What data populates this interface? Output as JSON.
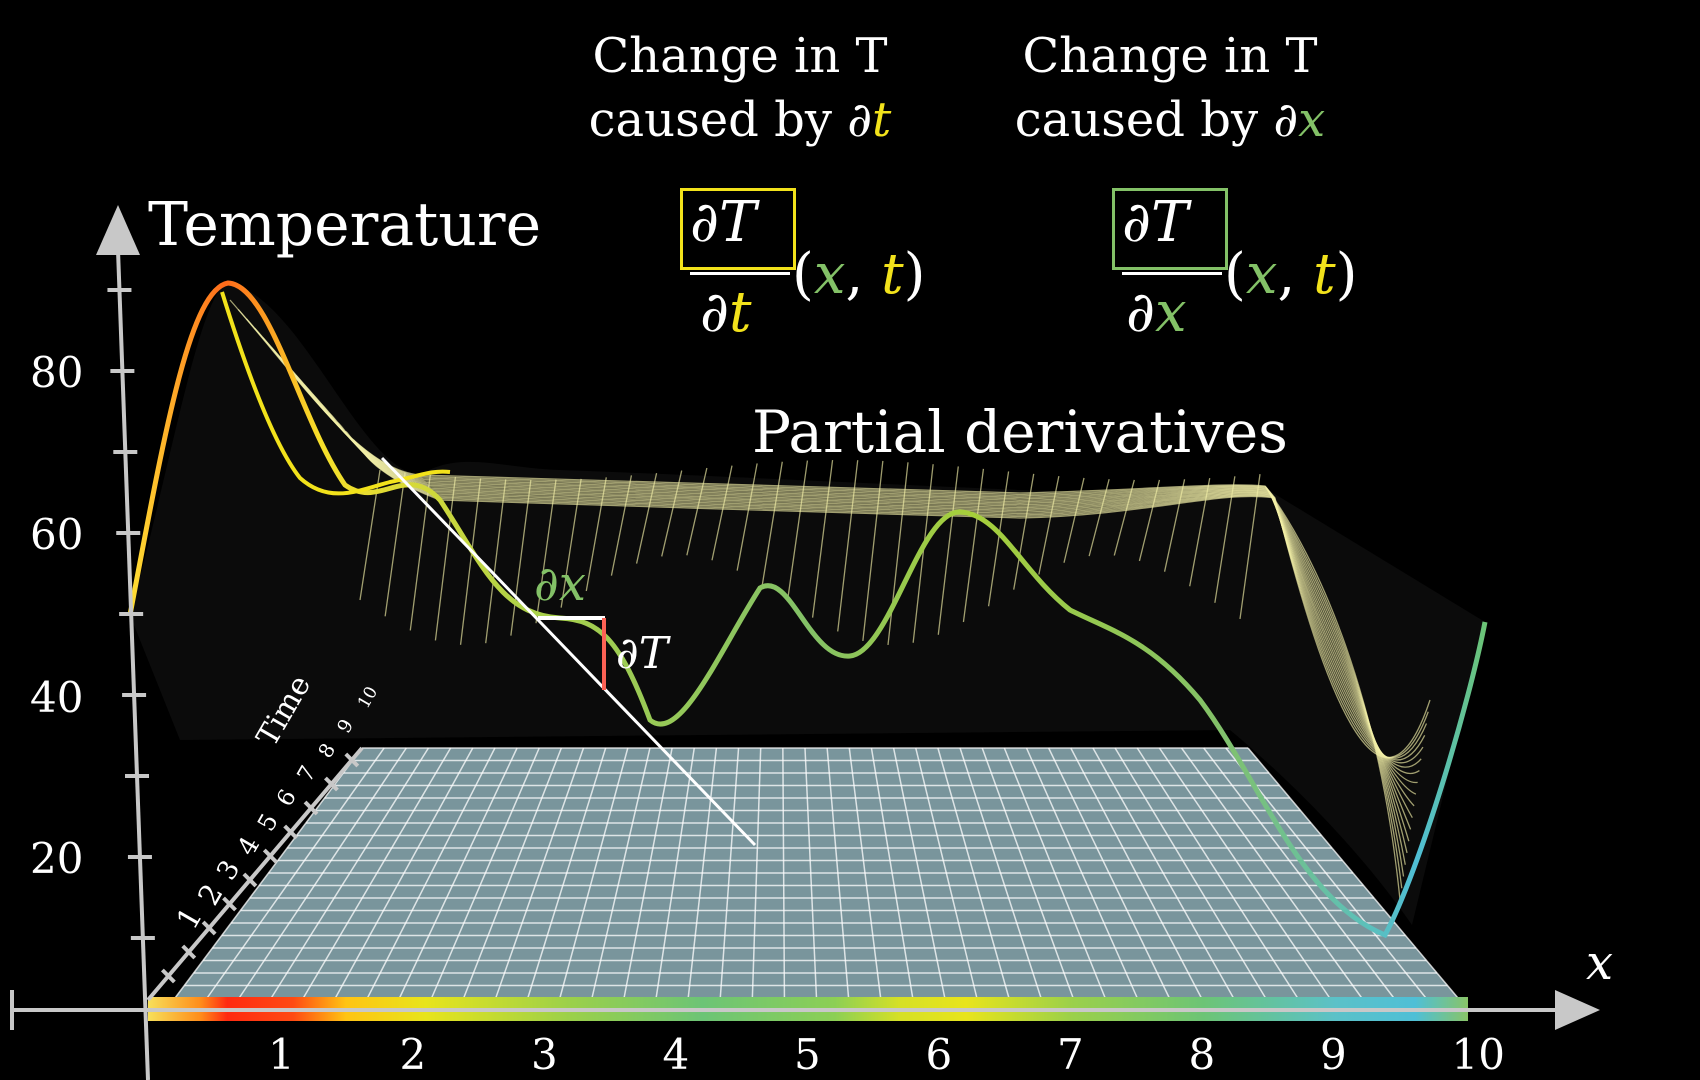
{
  "captions": {
    "t_line1": "Change in T",
    "t_line2_prefix": "caused by ∂",
    "t_line2_var": "t",
    "x_line1": "Change in T",
    "x_line2_prefix": "caused by ∂",
    "x_line2_var": "x"
  },
  "formulas": {
    "dt": {
      "numerator": "∂T",
      "denominator_prefix": "∂",
      "denominator_var": "t",
      "args_open": "(",
      "arg_x": "x",
      "comma": ", ",
      "arg_t": "t",
      "args_close": ")"
    },
    "dx": {
      "numerator": "∂T",
      "denominator_prefix": "∂",
      "denominator_var": "x",
      "args_open": "(",
      "arg_x": "x",
      "comma": ", ",
      "arg_t": "t",
      "args_close": ")"
    }
  },
  "labels": {
    "y_axis": "Temperature",
    "x_axis": "x",
    "time_axis": "Time",
    "section_title": "Partial derivatives",
    "dx_mark": "∂x",
    "dT_mark": "∂T"
  },
  "y_ticks": [
    "80",
    "60",
    "40",
    "20"
  ],
  "x_ticks": [
    "1",
    "2",
    "3",
    "4",
    "5",
    "6",
    "7",
    "8",
    "9",
    "10"
  ],
  "time_ticks": [
    "1",
    "2",
    "3",
    "4",
    "5",
    "6",
    "7",
    "8",
    "9",
    "10"
  ],
  "colors": {
    "yellow": "#f2e21b",
    "green": "#83c167",
    "red": "#fc6255",
    "white": "#ffffff",
    "axis": "#bbbbbb",
    "plane": "#a8cfd8"
  }
}
